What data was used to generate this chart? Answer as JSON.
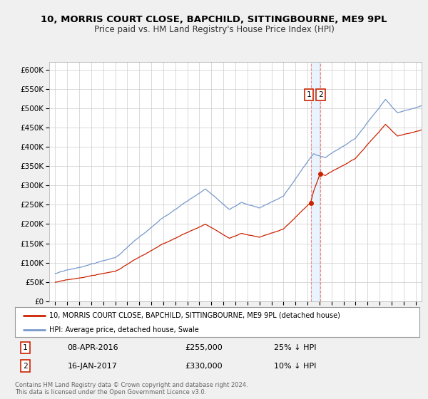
{
  "title": "10, MORRIS COURT CLOSE, BAPCHILD, SITTINGBOURNE, ME9 9PL",
  "subtitle": "Price paid vs. HM Land Registry's House Price Index (HPI)",
  "hpi_label": "HPI: Average price, detached house, Swale",
  "property_label": "10, MORRIS COURT CLOSE, BAPCHILD, SITTINGBOURNE, ME9 9PL (detached house)",
  "hpi_color": "#7799cc",
  "property_color": "#cc2200",
  "marker_color": "#cc2200",
  "vline_color": "#ee8888",
  "shade_color": "#ddeeff",
  "transaction1_date": "08-APR-2016",
  "transaction1_price": 255000,
  "transaction1_hpi_pct": "25% ↓ HPI",
  "transaction2_date": "16-JAN-2017",
  "transaction2_price": 330000,
  "transaction2_hpi_pct": "10% ↓ HPI",
  "transaction1_x": 2016.27,
  "transaction2_x": 2017.04,
  "ylim": [
    0,
    620000
  ],
  "xlim_start": 1994.5,
  "xlim_end": 2025.5,
  "yticks": [
    0,
    50000,
    100000,
    150000,
    200000,
    250000,
    300000,
    350000,
    400000,
    450000,
    500000,
    550000,
    600000
  ],
  "ytick_labels": [
    "£0",
    "£50K",
    "£100K",
    "£150K",
    "£200K",
    "£250K",
    "£300K",
    "£350K",
    "£400K",
    "£450K",
    "£500K",
    "£550K",
    "£600K"
  ],
  "footnote": "Contains HM Land Registry data © Crown copyright and database right 2024.\nThis data is licensed under the Open Government Licence v3.0.",
  "background_color": "#f0f0f0",
  "plot_bg_color": "#ffffff",
  "grid_color": "#cccccc",
  "legend_border_color": "#999999",
  "box_edge_color": "#cc2200"
}
